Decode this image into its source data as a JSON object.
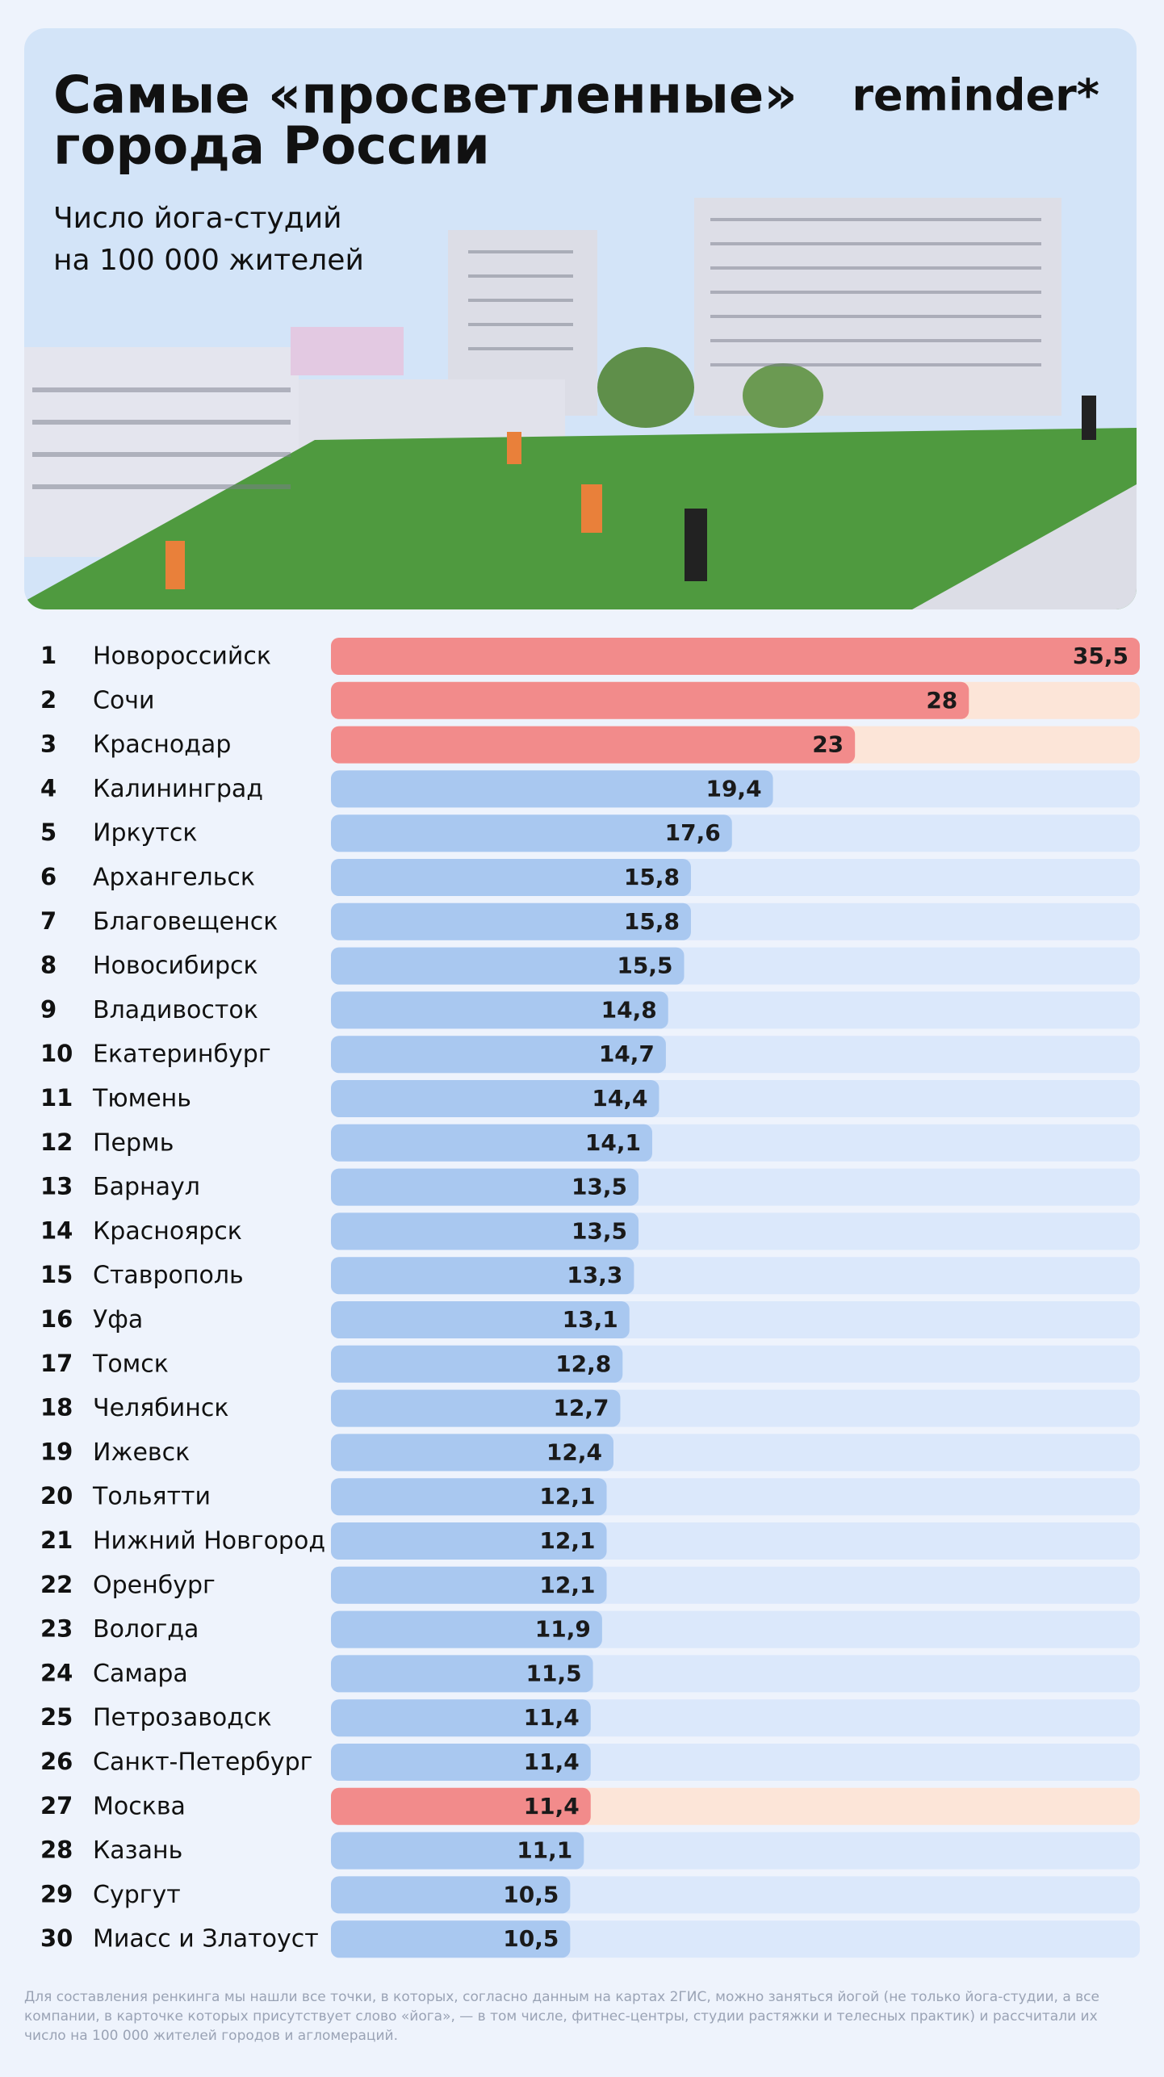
{
  "chart_data": {
    "type": "hbar",
    "title": [
      "Самые «просветленные»",
      "города России"
    ],
    "subtitle": [
      "Число йога-студий",
      "на 100 000 жителей"
    ],
    "brand": "reminder*",
    "ranks": [
      1,
      2,
      3,
      4,
      5,
      6,
      7,
      8,
      9,
      10,
      11,
      12,
      13,
      14,
      15,
      16,
      17,
      18,
      19,
      20,
      21,
      22,
      23,
      24,
      25,
      26,
      27,
      28,
      29,
      30
    ],
    "categories": [
      "Новороссийск",
      "Сочи",
      "Краснодар",
      "Калининград",
      "Иркутск",
      "Архангельск",
      "Благовещенск",
      "Новосибирск",
      "Владивосток",
      "Екатеринбург",
      "Тюмень",
      "Пермь",
      "Барнаул",
      "Красноярск",
      "Ставрополь",
      "Уфа",
      "Томск",
      "Челябинск",
      "Ижевск",
      "Тольятти",
      "Нижний Новгород",
      "Оренбург",
      "Вологда",
      "Самара",
      "Петрозаводск",
      "Санкт-Петербург",
      "Москва",
      "Казань",
      "Сургут",
      "Миасс и Златоуст"
    ],
    "values": [
      35.5,
      28,
      23,
      19.4,
      17.6,
      15.8,
      15.8,
      15.5,
      14.8,
      14.7,
      14.4,
      14.1,
      13.5,
      13.5,
      13.3,
      13.1,
      12.8,
      12.7,
      12.4,
      12.1,
      12.1,
      12.1,
      11.9,
      11.5,
      11.4,
      11.4,
      11.4,
      11.1,
      10.5,
      10.5
    ],
    "value_labels": [
      "35,5",
      "28",
      "23",
      "19,4",
      "17,6",
      "15,8",
      "15,8",
      "15,5",
      "14,8",
      "14,7",
      "14,4",
      "14,1",
      "13,5",
      "13,5",
      "13,3",
      "13,1",
      "12,8",
      "12,7",
      "12,4",
      "12,1",
      "12,1",
      "12,1",
      "11,9",
      "11,5",
      "11,4",
      "11,4",
      "11,4",
      "11,1",
      "10,5",
      "10,5"
    ],
    "colors": [
      "#f28b8b",
      "#f28b8b",
      "#f28b8b",
      "#a9c8f0",
      "#a9c8f0",
      "#a9c8f0",
      "#a9c8f0",
      "#a9c8f0",
      "#a9c8f0",
      "#a9c8f0",
      "#a9c8f0",
      "#a9c8f0",
      "#a9c8f0",
      "#a9c8f0",
      "#a9c8f0",
      "#a9c8f0",
      "#a9c8f0",
      "#a9c8f0",
      "#a9c8f0",
      "#a9c8f0",
      "#a9c8f0",
      "#a9c8f0",
      "#a9c8f0",
      "#a9c8f0",
      "#a9c8f0",
      "#a9c8f0",
      "#f28b8b",
      "#a9c8f0",
      "#a9c8f0",
      "#a9c8f0"
    ],
    "note": "Для составления ренкинга мы нашли все точки, в которых, согласно данным на картах 2ГИС, можно заняться йогой (не только йога-студии, а все компании, в карточке которых присутствует слово «йога», — в том числе, фитнес-центры, студии растяжки и телесных практик) и рассчитали их число на 100 000 жителей городов и агломераций."
  }
}
